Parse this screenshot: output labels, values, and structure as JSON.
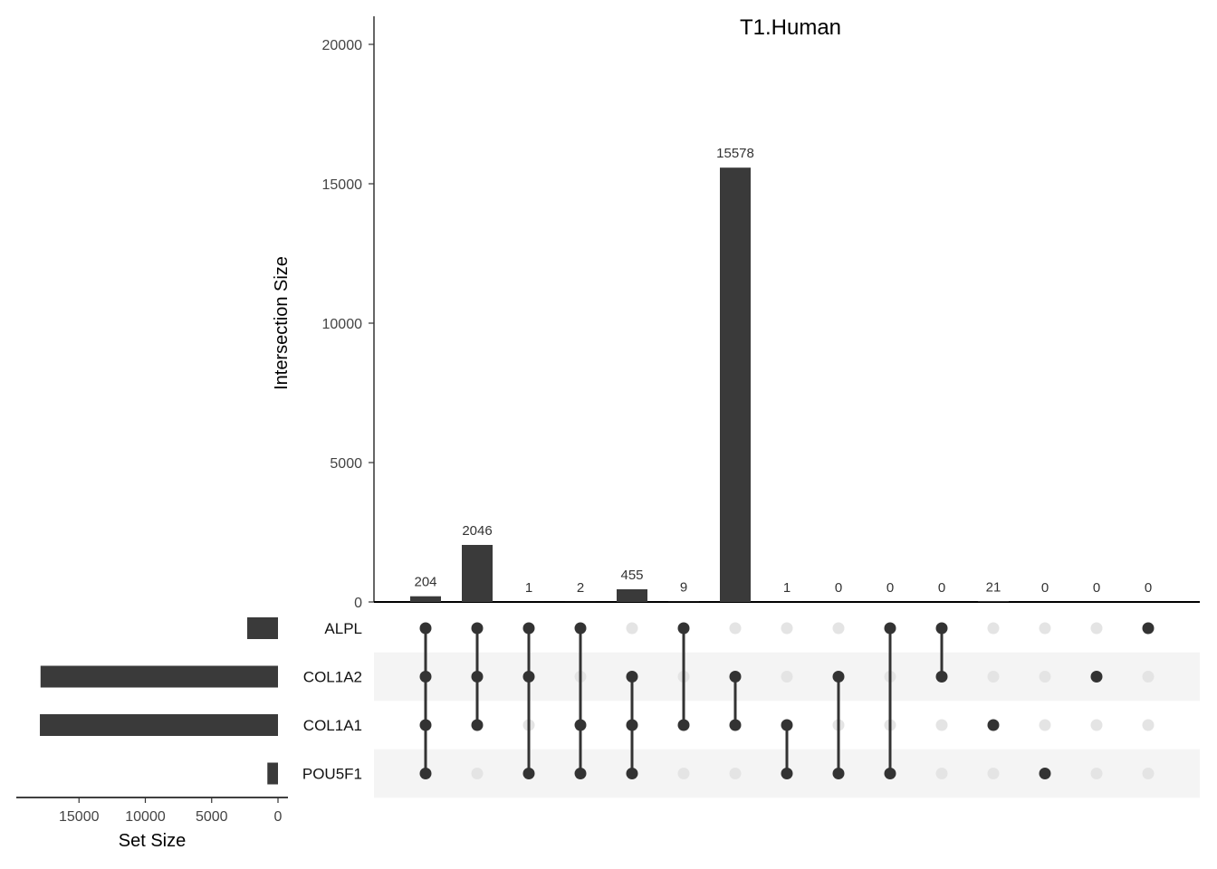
{
  "chart_data": {
    "type": "upset",
    "title": "T1.Human",
    "ylabel": "Intersection Size",
    "set_size_label": "Set Size",
    "ylim": [
      0,
      20000
    ],
    "yticks": [
      0,
      5000,
      10000,
      15000,
      20000
    ],
    "set_size_ticks": [
      15000,
      10000,
      5000,
      0
    ],
    "set_size_range": [
      0,
      18800
    ],
    "sets": [
      {
        "name": "ALPL",
        "size": 2320
      },
      {
        "name": "COL1A2",
        "size": 17900
      },
      {
        "name": "COL1A1",
        "size": 17950
      },
      {
        "name": "POU5F1",
        "size": 800
      }
    ],
    "intersections": [
      {
        "members": [
          "ALPL",
          "COL1A2",
          "COL1A1",
          "POU5F1"
        ],
        "value": 204
      },
      {
        "members": [
          "ALPL",
          "COL1A2",
          "COL1A1"
        ],
        "value": 2046
      },
      {
        "members": [
          "ALPL",
          "COL1A2",
          "POU5F1"
        ],
        "value": 1
      },
      {
        "members": [
          "ALPL",
          "COL1A1",
          "POU5F1"
        ],
        "value": 2
      },
      {
        "members": [
          "COL1A2",
          "COL1A1",
          "POU5F1"
        ],
        "value": 455
      },
      {
        "members": [
          "ALPL",
          "COL1A1"
        ],
        "value": 9
      },
      {
        "members": [
          "COL1A2",
          "COL1A1"
        ],
        "value": 15578
      },
      {
        "members": [
          "COL1A1",
          "POU5F1"
        ],
        "value": 1
      },
      {
        "members": [
          "COL1A2",
          "POU5F1"
        ],
        "value": 0
      },
      {
        "members": [
          "ALPL",
          "POU5F1"
        ],
        "value": 0
      },
      {
        "members": [
          "ALPL",
          "COL1A2"
        ],
        "value": 0
      },
      {
        "members": [
          "COL1A1"
        ],
        "value": 21
      },
      {
        "members": [
          "POU5F1"
        ],
        "value": 0
      },
      {
        "members": [
          "COL1A2"
        ],
        "value": 0
      },
      {
        "members": [
          "ALPL"
        ],
        "value": 0
      }
    ],
    "colors": {
      "bar": "#3a3a3a",
      "dot_active": "#333333",
      "dot_inactive": "#e4e4e4",
      "stripe": "#f4f4f4",
      "axis": "#000000"
    }
  }
}
